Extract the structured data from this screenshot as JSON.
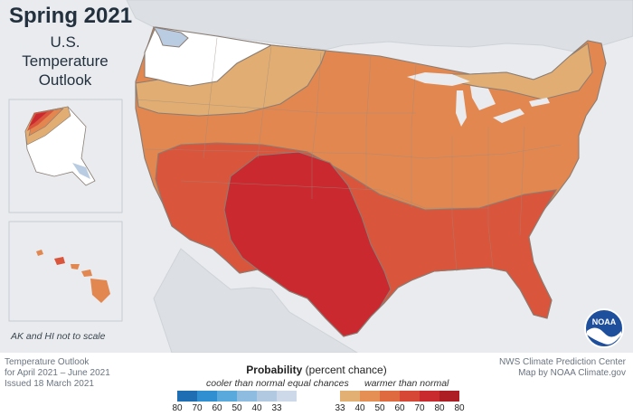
{
  "header": {
    "title": "Spring 2021",
    "subtitle_lines": [
      "U.S.",
      "Temperature",
      "Outlook"
    ]
  },
  "inset_note": "AK and HI not to scale",
  "footer": {
    "left_lines": [
      "Temperature Outlook",
      "for April 2021 – June 2021",
      "Issued 18 March 2021"
    ],
    "right_lines": [
      "NWS Climate Prediction Center",
      "Map by NOAA Climate.gov"
    ]
  },
  "legend": {
    "title_bold": "Probability",
    "title_rest": " (percent chance)",
    "cooler_label": "cooler than normal",
    "equal_label": "equal chances",
    "warmer_label": "warmer than normal",
    "cool_swatches": [
      {
        "label": "80",
        "color": "#1f6db3"
      },
      {
        "label": "70",
        "color": "#2f8fd0"
      },
      {
        "label": "60",
        "color": "#5aa9dc"
      },
      {
        "label": "50",
        "color": "#8dbce0"
      },
      {
        "label": "40",
        "color": "#b2c9e2"
      },
      {
        "label": "33",
        "color": "#cdd8e8"
      }
    ],
    "warm_swatches": [
      {
        "label": "33",
        "color": "#e3b074"
      },
      {
        "label": "40",
        "color": "#e58f55"
      },
      {
        "label": "50",
        "color": "#df6a3f"
      },
      {
        "label": "60",
        "color": "#d74735"
      },
      {
        "label": "70",
        "color": "#c92a2e"
      },
      {
        "label": "80",
        "color": "#ad1e24"
      }
    ],
    "end_label": "80"
  },
  "map": {
    "categories": {
      "cool_33_40": "#b9cce2",
      "equal_chances": "#ffffff",
      "warm_33_40": "#e1ad72",
      "warm_40_50": "#e2874f",
      "warm_50_60": "#d9553b",
      "warm_60_70": "#c9292f"
    },
    "background": "#e9ebee"
  },
  "logo": {
    "text": "NOAA"
  }
}
